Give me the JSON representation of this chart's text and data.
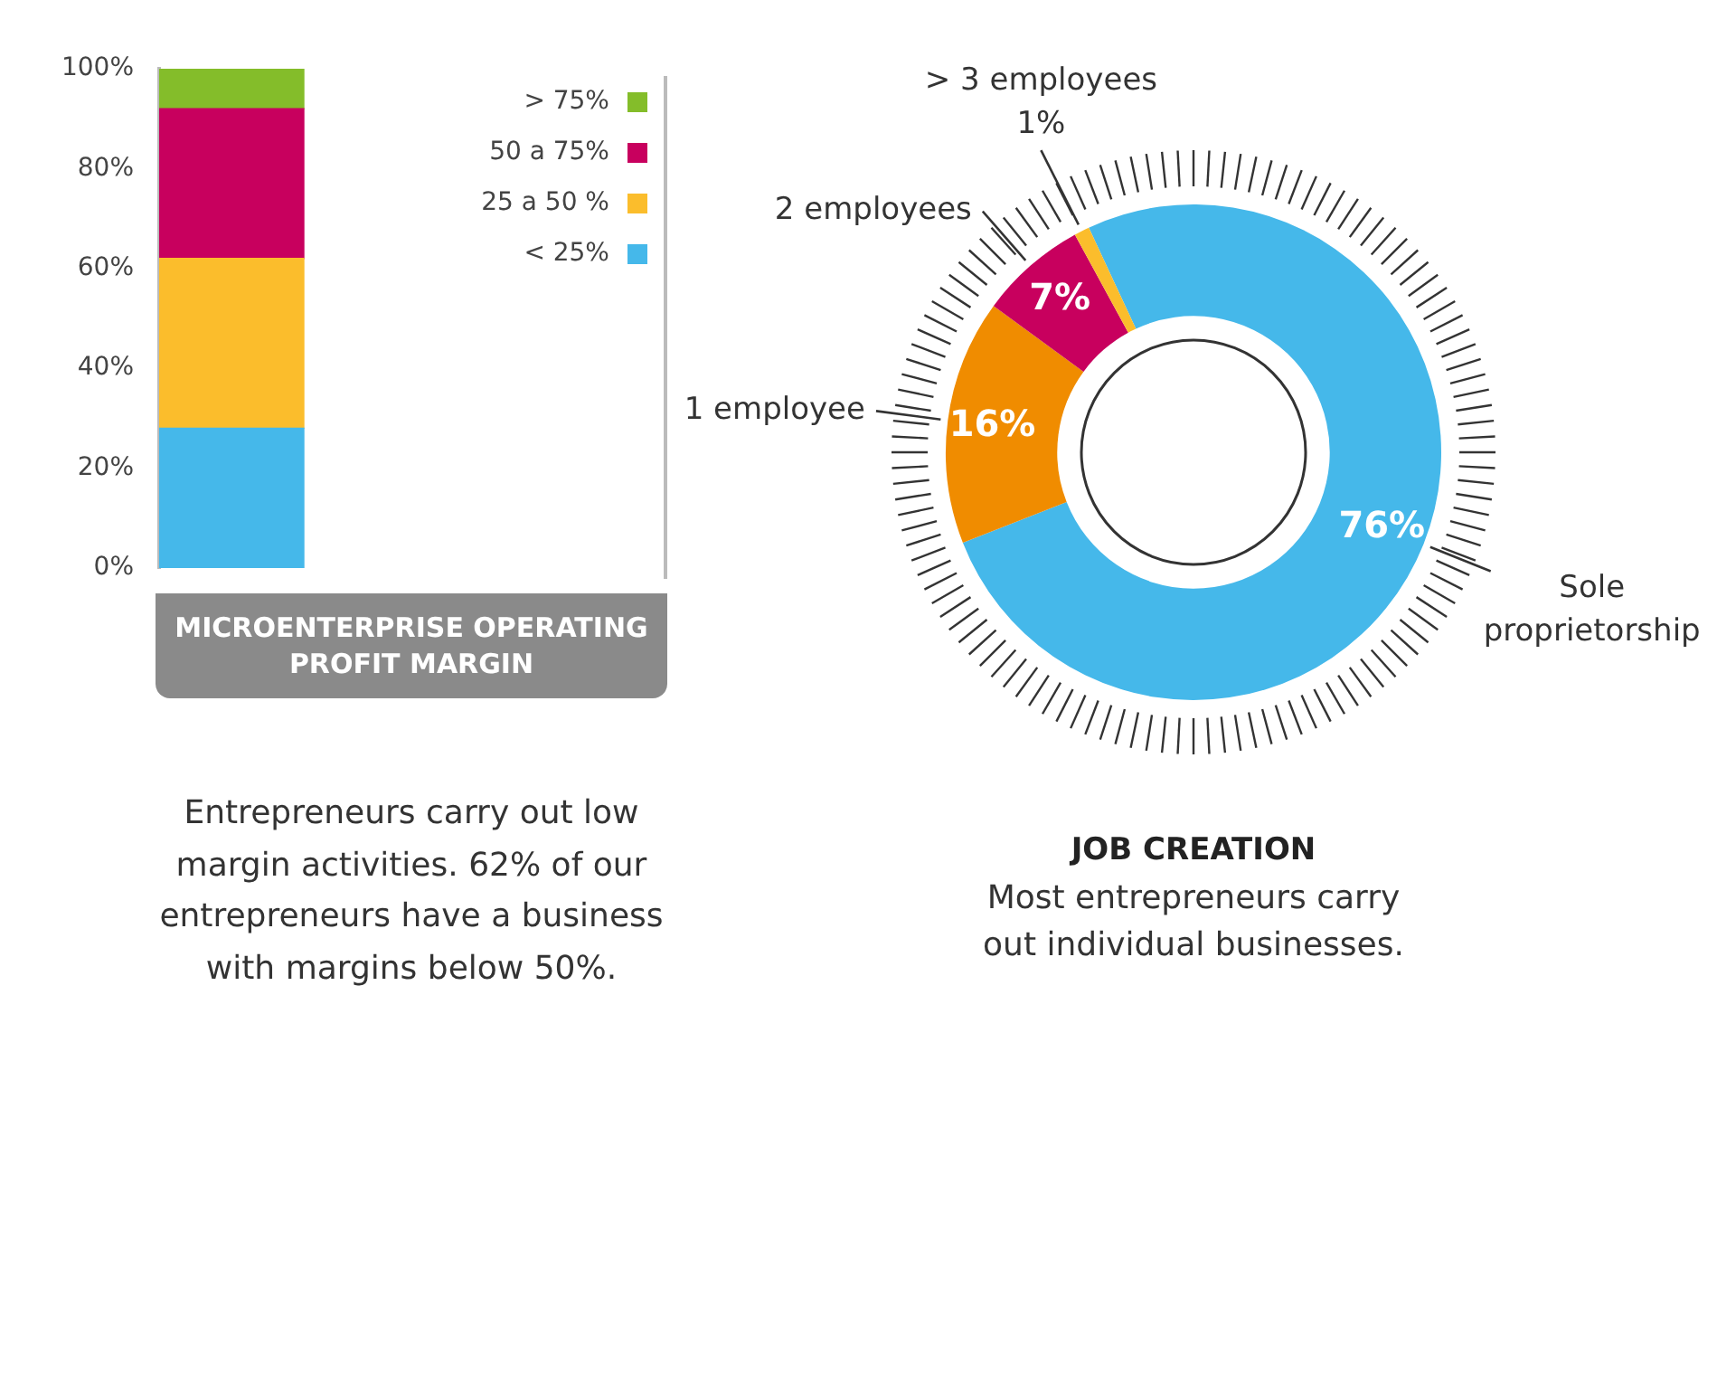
{
  "chart_data": [
    {
      "type": "bar",
      "stacked": true,
      "title": "MICROENTERPRISE OPERATING PROFIT MARGIN",
      "categories": [
        null
      ],
      "series": [
        {
          "name": "< 25%",
          "color": "#45b8ea",
          "values": [
            28
          ]
        },
        {
          "name": "25 a 50 %",
          "color": "#fbbd2c",
          "values": [
            34
          ]
        },
        {
          "name": "50 a 75%",
          "color": "#c8005e",
          "values": [
            30
          ]
        },
        {
          "name": "> 75%",
          "color": "#84bd2a",
          "values": [
            8
          ]
        }
      ],
      "ylim": [
        0,
        100
      ],
      "yticks": [
        {
          "value": 0,
          "label": "0%"
        },
        {
          "value": 20,
          "label": "20%"
        },
        {
          "value": 40,
          "label": "40%"
        },
        {
          "value": 60,
          "label": "60%"
        },
        {
          "value": 80,
          "label": "80%"
        },
        {
          "value": 100,
          "label": "100%"
        }
      ],
      "legend": "top right",
      "annotations": [
        "Entrepreneurs carry out low margin activities. 62% of our entrepreneurs have a business with margins below 50%."
      ]
    },
    {
      "type": "donut",
      "title": "JOB CREATION",
      "subtitle": "Most entrepreneurs carry out individual businesses.",
      "categories": [
        "Sole proprietorship",
        "1 employee",
        "2 employees",
        "> 3 employees"
      ],
      "values": [
        76,
        16,
        7,
        1
      ],
      "value_labels": [
        "76%",
        "16%",
        "7%",
        "1%"
      ],
      "colors": [
        "#45b8ea",
        "#f08c00",
        "#c8005e",
        "#fbbd2c"
      ]
    }
  ]
}
